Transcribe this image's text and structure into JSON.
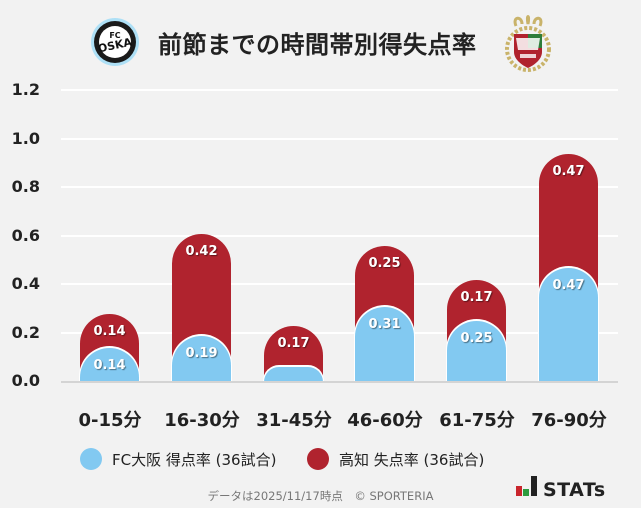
{
  "header": {
    "title": "前節までの時間帯別得失点率",
    "left_logo": "fc-osaka-crest-icon",
    "right_logo": "kochi-united-crest-icon"
  },
  "colors": {
    "background": "#f2f2f2",
    "fc_osaka": "#82c9f1",
    "kochi": "#b0232e",
    "gridline": "#ffffff"
  },
  "chart_data": {
    "type": "bar",
    "stacked": true,
    "title": "前節までの時間帯別得失点率",
    "xlabel": "",
    "ylabel": "",
    "ylim": [
      0,
      1.2
    ],
    "yticks": [
      "0.0",
      "0.2",
      "0.4",
      "0.6",
      "0.8",
      "1.0",
      "1.2"
    ],
    "grid": true,
    "legend_position": "bottom",
    "categories": [
      "0-15分",
      "16-30分",
      "31-45分",
      "46-60分",
      "61-75分",
      "76-90分"
    ],
    "series": [
      {
        "name": "FC大阪 得点率 (36試合)",
        "color": "#82c9f1",
        "values": [
          0.14,
          0.19,
          0.06,
          0.31,
          0.25,
          0.47
        ],
        "labels": [
          "0.14",
          "0.19",
          "",
          "0.31",
          "0.25",
          "0.47"
        ]
      },
      {
        "name": "高知 失点率 (36試合)",
        "color": "#b0232e",
        "values": [
          0.14,
          0.42,
          0.17,
          0.25,
          0.17,
          0.47
        ],
        "labels": [
          "0.14",
          "0.42",
          "0.17",
          "0.25",
          "0.17",
          "0.47"
        ]
      }
    ]
  },
  "legend": {
    "items": [
      {
        "label": "FC大阪 得点率 (36試合)",
        "color": "#82c9f1"
      },
      {
        "label": "高知 失点率 (36試合)",
        "color": "#b0232e"
      }
    ]
  },
  "footer": {
    "note": "データは2025/11/17時点　© SPORTERIA"
  },
  "brand": {
    "name": "STATs",
    "icon": "bar-chart-logo-icon"
  }
}
